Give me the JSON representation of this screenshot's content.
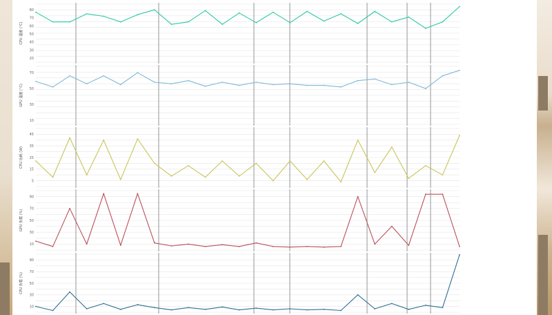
{
  "colors": {
    "background": "#ffffff",
    "grid": "#e6e6e6",
    "marker": "#8a8a8a",
    "cpu_temp": "#2ec9a6",
    "gpu_temp": "#7fb8d8",
    "cpu_power": "#c9c45a",
    "gpu_load": "#b8505c",
    "cpu_load": "#2e6f95"
  },
  "chart_data": [
    {
      "type": "line",
      "ylabel": "CPU 温度 (°C)",
      "ylim": [
        15,
        87
      ],
      "yticks": [
        20,
        30,
        40,
        50,
        60,
        70,
        80
      ],
      "grid": true,
      "x": [
        0,
        0.04,
        0.08,
        0.12,
        0.16,
        0.2,
        0.24,
        0.28,
        0.32,
        0.36,
        0.4,
        0.44,
        0.48,
        0.52,
        0.56,
        0.6,
        0.64,
        0.68,
        0.72,
        0.76,
        0.8,
        0.84,
        0.88,
        0.92,
        0.96,
        1
      ],
      "values": [
        77,
        65,
        65,
        75,
        72,
        65,
        74,
        80,
        62,
        65,
        79,
        62,
        76,
        64,
        77,
        64,
        78,
        66,
        75,
        63,
        78,
        65,
        71,
        57,
        65,
        84
      ]
    },
    {
      "type": "line",
      "ylabel": "GPU 温度 (°C)",
      "ylim": [
        5,
        78
      ],
      "yticks": [
        10,
        30,
        50,
        70
      ],
      "grid": true,
      "x": [
        0,
        0.04,
        0.08,
        0.12,
        0.16,
        0.2,
        0.24,
        0.28,
        0.32,
        0.36,
        0.4,
        0.44,
        0.48,
        0.52,
        0.56,
        0.6,
        0.64,
        0.68,
        0.72,
        0.76,
        0.8,
        0.84,
        0.88,
        0.92,
        0.96,
        1
      ],
      "values": [
        59,
        52,
        66,
        56,
        66,
        55,
        70,
        58,
        56,
        60,
        53,
        58,
        54,
        58,
        55,
        56,
        54,
        54,
        52,
        60,
        62,
        55,
        58,
        50,
        66,
        73
      ]
    },
    {
      "type": "line",
      "ylabel": "CPU 功耗 (W)",
      "ylim": [
        0,
        50
      ],
      "yticks": [
        5,
        15,
        25,
        35,
        45
      ],
      "grid": true,
      "x": [
        0,
        0.04,
        0.08,
        0.12,
        0.16,
        0.2,
        0.24,
        0.28,
        0.32,
        0.36,
        0.4,
        0.44,
        0.48,
        0.52,
        0.56,
        0.6,
        0.64,
        0.68,
        0.72,
        0.76,
        0.8,
        0.84,
        0.88,
        0.92,
        0.96,
        1
      ],
      "values": [
        22,
        8,
        42,
        10,
        40,
        6,
        41,
        20,
        9,
        18,
        8,
        22,
        9,
        20,
        5,
        22,
        6,
        22,
        4,
        40,
        12,
        34,
        7,
        18,
        10,
        44
      ]
    },
    {
      "type": "line",
      "ylabel": "GPU 负载 (%)",
      "ylim": [
        0,
        100
      ],
      "yticks": [
        10,
        30,
        50,
        70,
        90
      ],
      "grid": true,
      "x": [
        0,
        0.04,
        0.08,
        0.12,
        0.16,
        0.2,
        0.24,
        0.28,
        0.32,
        0.36,
        0.4,
        0.44,
        0.48,
        0.52,
        0.56,
        0.6,
        0.64,
        0.68,
        0.72,
        0.76,
        0.8,
        0.84,
        0.88,
        0.92,
        0.96,
        1
      ],
      "values": [
        15,
        6,
        70,
        10,
        95,
        8,
        95,
        12,
        7,
        10,
        6,
        9,
        6,
        12,
        6,
        5,
        6,
        5,
        6,
        90,
        10,
        40,
        8,
        94,
        94,
        6
      ]
    },
    {
      "type": "line",
      "ylabel": "CPU 负载 (%)",
      "ylim": [
        0,
        100
      ],
      "yticks": [
        10,
        30,
        50,
        70,
        90
      ],
      "grid": true,
      "x": [
        0,
        0.04,
        0.08,
        0.12,
        0.16,
        0.2,
        0.24,
        0.28,
        0.32,
        0.36,
        0.4,
        0.44,
        0.48,
        0.52,
        0.56,
        0.6,
        0.64,
        0.68,
        0.72,
        0.76,
        0.8,
        0.84,
        0.88,
        0.92,
        0.96,
        1
      ],
      "values": [
        10,
        3,
        35,
        6,
        15,
        5,
        13,
        8,
        4,
        8,
        5,
        9,
        4,
        7,
        4,
        6,
        4,
        5,
        3,
        30,
        6,
        15,
        5,
        12,
        8,
        99
      ]
    }
  ]
}
